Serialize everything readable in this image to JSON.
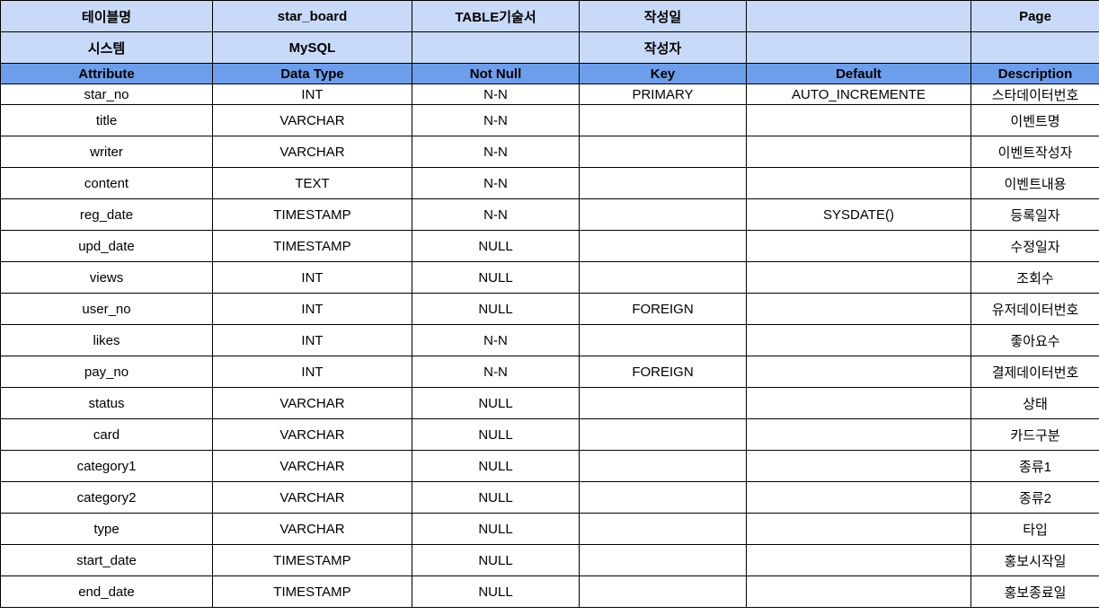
{
  "meta": {
    "row1": [
      "테이블명",
      "star_board",
      "TABLE기술서",
      "작성일",
      "",
      "Page"
    ],
    "row2": [
      "시스템",
      "MySQL",
      "",
      "작성자",
      "",
      ""
    ]
  },
  "columns": [
    "Attribute",
    "Data Type",
    "Not Null",
    "Key",
    "Default",
    "Description"
  ],
  "rows": [
    [
      "star_no",
      "INT",
      "N-N",
      "PRIMARY",
      "AUTO_INCREMENTE",
      "스타데이터번호"
    ],
    [
      "title",
      "VARCHAR",
      "N-N",
      "",
      "",
      "이벤트명"
    ],
    [
      "writer",
      "VARCHAR",
      "N-N",
      "",
      "",
      "이벤트작성자"
    ],
    [
      "content",
      "TEXT",
      "N-N",
      "",
      "",
      "이벤트내용"
    ],
    [
      "reg_date",
      "TIMESTAMP",
      "N-N",
      "",
      "SYSDATE()",
      "등록일자"
    ],
    [
      "upd_date",
      "TIMESTAMP",
      "NULL",
      "",
      "",
      "수정일자"
    ],
    [
      "views",
      "INT",
      "NULL",
      "",
      "",
      "조회수"
    ],
    [
      "user_no",
      "INT",
      "NULL",
      "FOREIGN",
      "",
      "유저데이터번호"
    ],
    [
      "likes",
      "INT",
      "N-N",
      "",
      "",
      "좋아요수"
    ],
    [
      "pay_no",
      "INT",
      "N-N",
      "FOREIGN",
      "",
      "결제데이터번호"
    ],
    [
      "status",
      "VARCHAR",
      "NULL",
      "",
      "",
      "상태"
    ],
    [
      "card",
      "VARCHAR",
      "NULL",
      "",
      "",
      "카드구분"
    ],
    [
      "category1",
      "VARCHAR",
      "NULL",
      "",
      "",
      "종류1"
    ],
    [
      "category2",
      "VARCHAR",
      "NULL",
      "",
      "",
      "종류2"
    ],
    [
      "type",
      "VARCHAR",
      "NULL",
      "",
      "",
      "타입"
    ],
    [
      "start_date",
      "TIMESTAMP",
      "NULL",
      "",
      "",
      "홍보시작일"
    ],
    [
      "end_date",
      "TIMESTAMP",
      "NULL",
      "",
      "",
      "홍보종료일"
    ]
  ],
  "colors": {
    "meta_bg": "#c9daf8",
    "header_bg": "#6d9eeb",
    "border": "#000000"
  }
}
